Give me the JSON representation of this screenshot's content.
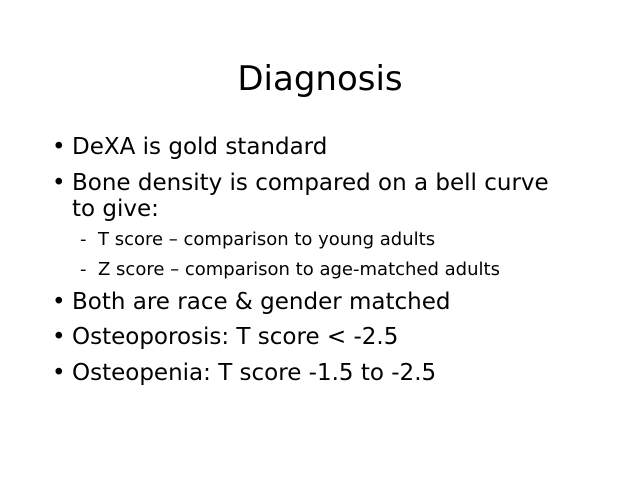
{
  "slide": {
    "title": "Diagnosis",
    "bullets": [
      {
        "text": "DeXA is gold standard",
        "marker": "•"
      },
      {
        "text": "Bone density is compared on a bell curve to give:",
        "marker": "•",
        "sub_items": [
          {
            "text": "T score – comparison to young adults",
            "marker": "-"
          },
          {
            "text": "Z score – comparison to age-matched adults",
            "marker": "-"
          }
        ]
      },
      {
        "text": "Both are race & gender matched",
        "marker": "•"
      },
      {
        "text": "Osteoporosis: T score < -2.5",
        "marker": "•"
      },
      {
        "text": "Osteopenia: T score -1.5 to -2.5",
        "marker": "•"
      }
    ]
  }
}
